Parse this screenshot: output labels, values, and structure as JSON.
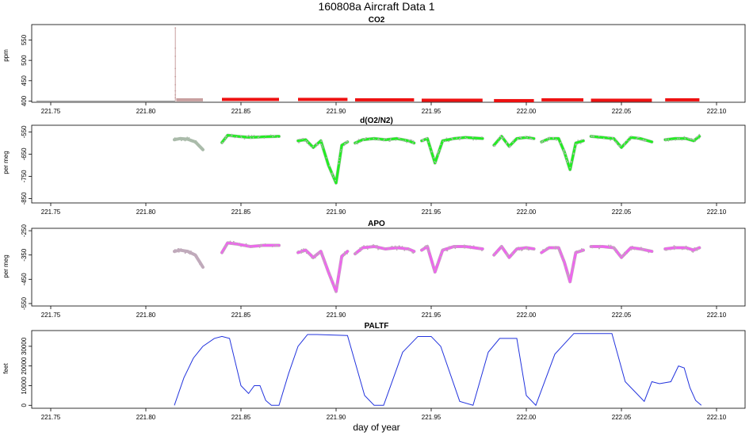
{
  "figure": {
    "title": "160808a   Aircraft Data 1",
    "xlabel": "day of year"
  },
  "colors": {
    "co2": "#ee1111",
    "o2n2": "#22ee22",
    "apo": "#ee66ee",
    "paltf": "#2233dd",
    "grey": "#aabbaa",
    "pinkgrey": "#c0aabb",
    "co2grey": "#c8a0a0"
  },
  "chart_data": [
    {
      "type": "scatter",
      "title": "CO2",
      "ylabel": "ppm",
      "xlim": [
        221.74,
        222.115
      ],
      "ylim": [
        397,
        588
      ],
      "xticks": [
        "221.75",
        "221.80",
        "221.85",
        "221.90",
        "221.95",
        "222.00",
        "222.05",
        "222.10"
      ],
      "yticks": [
        "400",
        "450",
        "500",
        "550"
      ],
      "baseline": 400,
      "spike": {
        "x": 221.8155,
        "values": [
          580,
          530,
          510,
          480,
          460,
          440,
          425,
          415,
          408
        ]
      },
      "grey_segment": [
        221.816,
        221.83,
        403
      ],
      "segments": [
        [
          221.84,
          221.87,
          404
        ],
        [
          221.88,
          221.906,
          404
        ],
        [
          221.91,
          221.941,
          403
        ],
        [
          221.945,
          221.977,
          402
        ],
        [
          221.983,
          222.004,
          401
        ],
        [
          222.008,
          222.03,
          403
        ],
        [
          222.034,
          222.066,
          402
        ],
        [
          222.073,
          222.091,
          403
        ]
      ]
    },
    {
      "type": "scatter",
      "title": "d(O2/N2)",
      "ylabel": "per meg",
      "xlim": [
        221.74,
        222.115
      ],
      "ylim": [
        -870,
        -520
      ],
      "xticks": [
        "221.75",
        "221.80",
        "221.85",
        "221.90",
        "221.95",
        "222.00",
        "222.05",
        "222.10"
      ],
      "yticks": [
        "-850",
        "-750",
        "-650",
        "-550"
      ],
      "segments": [
        {
          "x": [
            221.815,
            221.818,
            221.822,
            221.826,
            221.83
          ],
          "y": [
            -585,
            -580,
            -583,
            -595,
            -630
          ],
          "grey": true
        },
        {
          "x": [
            221.84,
            221.843,
            221.848,
            221.855,
            221.862,
            221.87
          ],
          "y": [
            -598,
            -565,
            -570,
            -575,
            -572,
            -570
          ]
        },
        {
          "x": [
            221.88,
            221.884,
            221.888,
            221.892,
            221.896,
            221.9,
            221.903,
            221.906
          ],
          "y": [
            -590,
            -585,
            -620,
            -590,
            -700,
            -780,
            -610,
            -595
          ]
        },
        {
          "x": [
            221.91,
            221.914,
            221.92,
            221.926,
            221.932,
            221.938,
            221.941
          ],
          "y": [
            -600,
            -585,
            -580,
            -585,
            -580,
            -590,
            -600
          ]
        },
        {
          "x": [
            221.945,
            221.948,
            221.952,
            221.956,
            221.962,
            221.968,
            221.977
          ],
          "y": [
            -590,
            -580,
            -690,
            -590,
            -580,
            -575,
            -580
          ]
        },
        {
          "x": [
            221.983,
            221.987,
            221.991,
            221.995,
            222.0,
            222.004
          ],
          "y": [
            -610,
            -570,
            -615,
            -580,
            -575,
            -580
          ]
        },
        {
          "x": [
            222.008,
            222.012,
            222.017,
            222.02,
            222.023,
            222.026,
            222.03
          ],
          "y": [
            -595,
            -580,
            -580,
            -640,
            -720,
            -600,
            -590
          ]
        },
        {
          "x": [
            222.034,
            222.04,
            222.046,
            222.05,
            222.055,
            222.06,
            222.066
          ],
          "y": [
            -570,
            -575,
            -580,
            -620,
            -575,
            -580,
            -595
          ]
        },
        {
          "x": [
            222.073,
            222.078,
            222.084,
            222.088,
            222.091
          ],
          "y": [
            -585,
            -580,
            -580,
            -590,
            -570
          ]
        }
      ]
    },
    {
      "type": "scatter",
      "title": "APO",
      "ylabel": "per meg",
      "xlim": [
        221.74,
        222.115
      ],
      "ylim": [
        -560,
        -240
      ],
      "xticks": [
        "221.75",
        "221.80",
        "221.85",
        "221.90",
        "221.95",
        "222.00",
        "222.05",
        "222.10"
      ],
      "yticks": [
        "-550",
        "-450",
        "-350",
        "-250"
      ],
      "segments": [
        {
          "x": [
            221.815,
            221.818,
            221.822,
            221.826,
            221.83
          ],
          "y": [
            -335,
            -330,
            -335,
            -350,
            -400
          ],
          "grey": true
        },
        {
          "x": [
            221.84,
            221.843,
            221.848,
            221.855,
            221.862,
            221.87
          ],
          "y": [
            -340,
            -300,
            -305,
            -315,
            -310,
            -310
          ]
        },
        {
          "x": [
            221.88,
            221.884,
            221.888,
            221.892,
            221.896,
            221.9,
            221.903,
            221.906
          ],
          "y": [
            -340,
            -330,
            -360,
            -335,
            -420,
            -500,
            -355,
            -335
          ]
        },
        {
          "x": [
            221.91,
            221.914,
            221.92,
            221.926,
            221.932,
            221.938,
            221.941
          ],
          "y": [
            -345,
            -320,
            -315,
            -325,
            -320,
            -325,
            -335
          ]
        },
        {
          "x": [
            221.945,
            221.948,
            221.952,
            221.956,
            221.962,
            221.968,
            221.977
          ],
          "y": [
            -330,
            -315,
            -420,
            -330,
            -315,
            -315,
            -325
          ]
        },
        {
          "x": [
            221.983,
            221.987,
            221.991,
            221.995,
            222.0,
            222.004
          ],
          "y": [
            -350,
            -315,
            -360,
            -325,
            -320,
            -325
          ]
        },
        {
          "x": [
            222.008,
            222.012,
            222.017,
            222.02,
            222.023,
            222.026,
            222.03
          ],
          "y": [
            -340,
            -320,
            -320,
            -380,
            -460,
            -340,
            -330
          ]
        },
        {
          "x": [
            222.034,
            222.04,
            222.046,
            222.05,
            222.055,
            222.06,
            222.066
          ],
          "y": [
            -315,
            -315,
            -320,
            -360,
            -320,
            -325,
            -335
          ]
        },
        {
          "x": [
            222.073,
            222.078,
            222.084,
            222.088,
            222.091
          ],
          "y": [
            -325,
            -320,
            -320,
            -330,
            -320
          ]
        }
      ]
    },
    {
      "type": "line",
      "title": "PALTF",
      "ylabel": "feet",
      "xlim": [
        221.74,
        222.115
      ],
      "ylim": [
        -1500,
        38000
      ],
      "xticks": [
        "221.75",
        "221.80",
        "221.85",
        "221.90",
        "221.95",
        "222.00",
        "222.05",
        "222.10"
      ],
      "yticks": [
        "0",
        "10000",
        "20000",
        "30000"
      ],
      "x": [
        221.815,
        221.82,
        221.825,
        221.83,
        221.836,
        221.84,
        221.844,
        221.85,
        221.854,
        221.857,
        221.86,
        221.863,
        221.866,
        221.87,
        221.875,
        221.88,
        221.885,
        221.89,
        221.906,
        221.915,
        221.92,
        221.925,
        221.935,
        221.943,
        221.95,
        221.955,
        221.965,
        221.972,
        221.98,
        221.986,
        221.995,
        222.0,
        222.005,
        222.015,
        222.025,
        222.045,
        222.052,
        222.058,
        222.062,
        222.066,
        222.07,
        222.076,
        222.08,
        222.083,
        222.086,
        222.089,
        222.092
      ],
      "y": [
        0,
        14000,
        24000,
        30000,
        34000,
        35000,
        34000,
        10000,
        6000,
        10000,
        10000,
        2500,
        0,
        0,
        16000,
        30000,
        36000,
        36000,
        35500,
        5000,
        0,
        0,
        27000,
        35000,
        35000,
        30000,
        2000,
        0,
        27000,
        34000,
        34000,
        5000,
        0,
        26000,
        36500,
        36500,
        12000,
        6000,
        2000,
        12000,
        11000,
        12000,
        20000,
        19000,
        9000,
        2500,
        0
      ]
    }
  ]
}
